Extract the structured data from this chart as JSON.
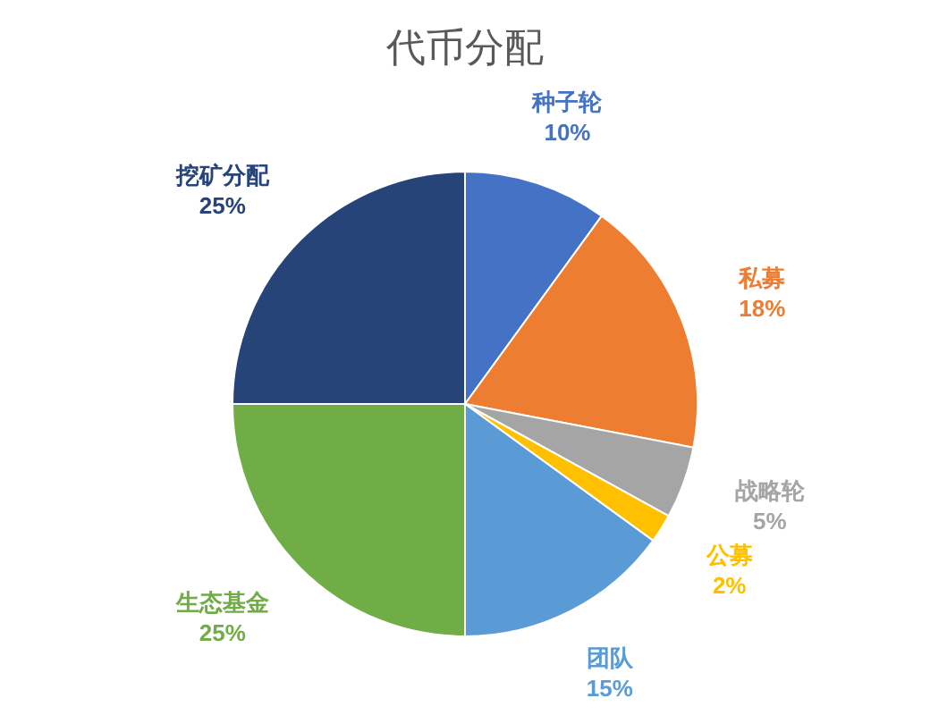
{
  "chart_data": {
    "type": "pie",
    "title": "代币分配",
    "categories": [
      "种子轮",
      "私募",
      "战略轮",
      "公募",
      "团队",
      "生态基金",
      "挖矿分配"
    ],
    "values": [
      10,
      18,
      5,
      2,
      15,
      25,
      25
    ],
    "colors": [
      "#4472c4",
      "#ed7d31",
      "#a5a5a5",
      "#ffc000",
      "#5b9bd5",
      "#70ad47",
      "#264478"
    ],
    "value_labels": [
      "10%",
      "18%",
      "5%",
      "2%",
      "15%",
      "25%",
      "25%"
    ]
  }
}
